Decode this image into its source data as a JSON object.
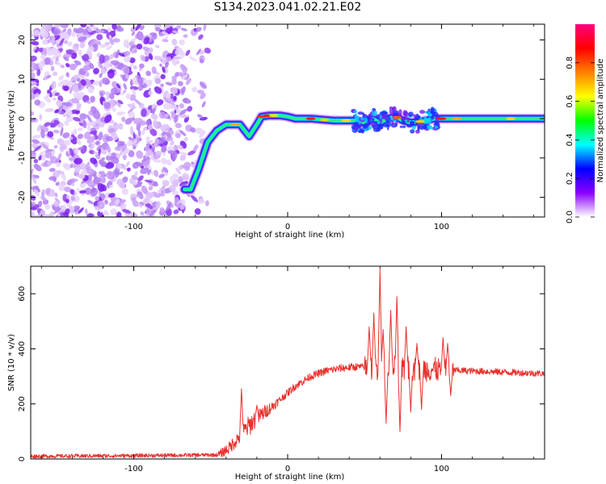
{
  "title": "S134.2023.041.02.21.E02",
  "chart_data": [
    {
      "type": "heatmap",
      "xlabel": "Height of straight line (km)",
      "ylabel": "Frequency (Hz)",
      "xlim": [
        -167,
        167
      ],
      "ylim": [
        -25,
        24
      ],
      "x_ticks": [
        -100,
        0,
        100
      ],
      "x_tick_labels": [
        "-100",
        "0",
        "100"
      ],
      "y_ticks": [
        -20,
        -10,
        0,
        10,
        20
      ],
      "y_tick_labels": [
        "-20",
        "-10",
        "0",
        "10",
        "20"
      ],
      "colorbar": {
        "label": "Normalized spectral amplitude",
        "range": [
          0,
          1
        ],
        "ticks": [
          0.0,
          0.2,
          0.4,
          0.6,
          0.8
        ],
        "tick_labels": [
          "0.0",
          "0.2",
          "0.4",
          "0.6",
          "0.8"
        ],
        "colors": [
          "#ffffff",
          "#8b00ff",
          "#0000ff",
          "#00ffff",
          "#00ff00",
          "#ffff00",
          "#ff8000",
          "#ff0000",
          "#ff007f"
        ]
      },
      "ridge": {
        "x": [
          -67,
          -63,
          -58,
          -52,
          -46,
          -40,
          -36,
          -31,
          -27,
          -25,
          -20,
          -17,
          -12,
          -5,
          0,
          5,
          15,
          30,
          45,
          50,
          55,
          60,
          65,
          70,
          75,
          80,
          85,
          90,
          95,
          100,
          120,
          140,
          167
        ],
        "y": [
          -18,
          -18,
          -13,
          -6,
          -3,
          -1.5,
          -1.5,
          -1.5,
          -3.5,
          -4.5,
          -1.5,
          0.5,
          0.8,
          0.8,
          0.5,
          0,
          0,
          -0.5,
          -0.5,
          -1,
          0,
          -1,
          0,
          0.5,
          -0.5,
          -1,
          -0.8,
          -0.5,
          0,
          0,
          0,
          0,
          0
        ]
      },
      "noise_region": {
        "x": [
          -167,
          -60
        ],
        "y": [
          -25,
          24
        ]
      }
    },
    {
      "type": "line",
      "xlabel": "Height of straight line (km)",
      "ylabel": "SNR (10 * v/v)",
      "xlim": [
        -167,
        167
      ],
      "ylim": [
        0,
        700
      ],
      "x_ticks": [
        -100,
        0,
        100
      ],
      "x_tick_labels": [
        "-100",
        "0",
        "100"
      ],
      "y_ticks": [
        0,
        200,
        400,
        600
      ],
      "y_tick_labels": [
        "0",
        "200",
        "400",
        "600"
      ],
      "color": "#e8302c",
      "series_envelope": {
        "x": [
          -167,
          -100,
          -45,
          -38,
          -30,
          -22,
          -15,
          -10,
          -5,
          0,
          5,
          15,
          25,
          35,
          45,
          167
        ],
        "y": [
          10,
          12,
          15,
          40,
          90,
          140,
          170,
          190,
          215,
          240,
          265,
          300,
          320,
          330,
          335,
          310
        ]
      },
      "spikes": [
        {
          "x": -30,
          "y": 255
        },
        {
          "x": -20,
          "y": 195
        },
        {
          "x": 53,
          "y": 480
        },
        {
          "x": 56,
          "y": 530
        },
        {
          "x": 60,
          "y": 690
        },
        {
          "x": 62,
          "y": 470
        },
        {
          "x": 64,
          "y": 130
        },
        {
          "x": 67,
          "y": 540
        },
        {
          "x": 71,
          "y": 590
        },
        {
          "x": 73,
          "y": 100
        },
        {
          "x": 77,
          "y": 480
        },
        {
          "x": 80,
          "y": 170
        },
        {
          "x": 84,
          "y": 420
        },
        {
          "x": 87,
          "y": 180
        },
        {
          "x": 101,
          "y": 440
        },
        {
          "x": 104,
          "y": 420
        },
        {
          "x": 106,
          "y": 230
        }
      ]
    }
  ]
}
